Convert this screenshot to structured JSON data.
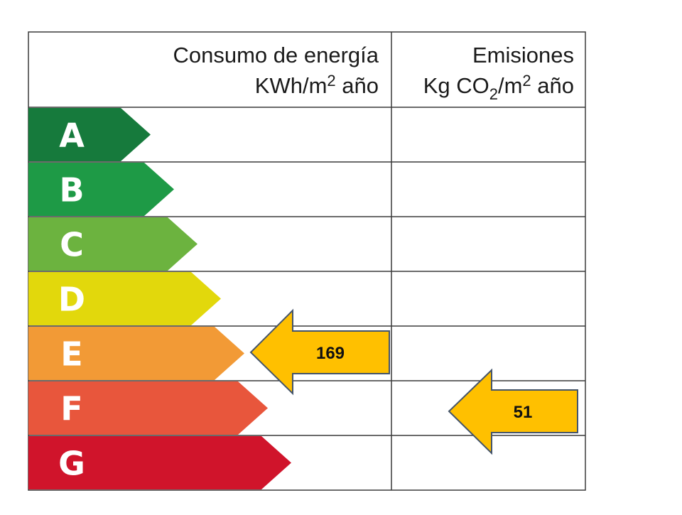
{
  "header": {
    "energy": {
      "line1": "Consumo de energía",
      "line2_pre": "KWh/m",
      "line2_sup": "2",
      "line2_post": " año"
    },
    "emissions": {
      "line1": "Emisiones",
      "line2_pre": "Kg CO",
      "line2_sub": "2",
      "line2_mid": "/m",
      "line2_sup": "2",
      "line2_post": " año"
    }
  },
  "ratings": [
    {
      "letter": "A",
      "color": "#167a3c"
    },
    {
      "letter": "B",
      "color": "#1e9a46"
    },
    {
      "letter": "C",
      "color": "#6cb33f"
    },
    {
      "letter": "D",
      "color": "#e2d80c"
    },
    {
      "letter": "E",
      "color": "#f29a36"
    },
    {
      "letter": "F",
      "color": "#e8563c"
    },
    {
      "letter": "G",
      "color": "#d0142b"
    }
  ],
  "indicators": {
    "energy": {
      "value": "169",
      "rating": "E",
      "color": "#ffc000"
    },
    "emissions": {
      "value": "51",
      "rating": "F",
      "color": "#ffc000"
    }
  }
}
